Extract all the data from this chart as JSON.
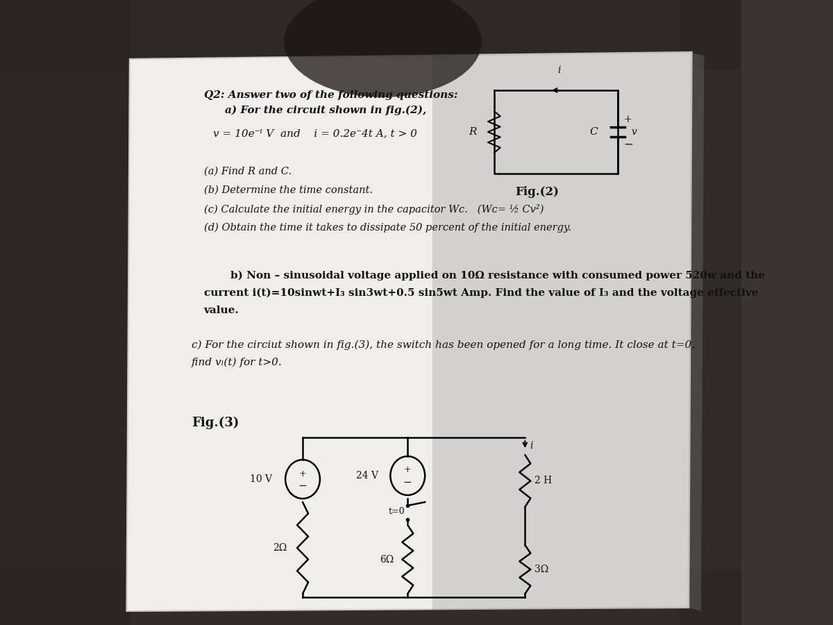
{
  "bg_color": "#3a3530",
  "paper_bg": "#f2f0ed",
  "title_line1": "Q2: Answer two of the following questions:",
  "title_line2": "    a) For the circuit shown in fig.(2),",
  "eq_line": "v = 10e⁻ᵗ V  and    i = 0.2e⁻4t A, t > 0",
  "part_a": [
    "(a) Find R and C.",
    "(b) Determine the time constant.",
    "(c) Calculate the initial energy in the capacitor Wc.   (Wᴄ= ½ Cv²)",
    "(d) Obtain the time it takes to dissipate 50 percent of the initial energy."
  ],
  "part_b_line1": "    b) Non – sinusoidal voltage applied on 10Ω resistance with consumed power 520w and the",
  "part_b_line2": "current i(t)=10sinwt+I₃ sin3wt+0.5 sin5wt Amp. Find the value of I₃ and the voltage effective",
  "part_b_line3": "value.",
  "part_c_line1": "c) For the circiut shown in fig.(3), the switch has been opened for a long time. It close at t=0,",
  "part_c_line2": "find vₗ(t) for t>0.",
  "fig2_label": "Fig.(2)",
  "fig3_label": "Fig.(3)"
}
